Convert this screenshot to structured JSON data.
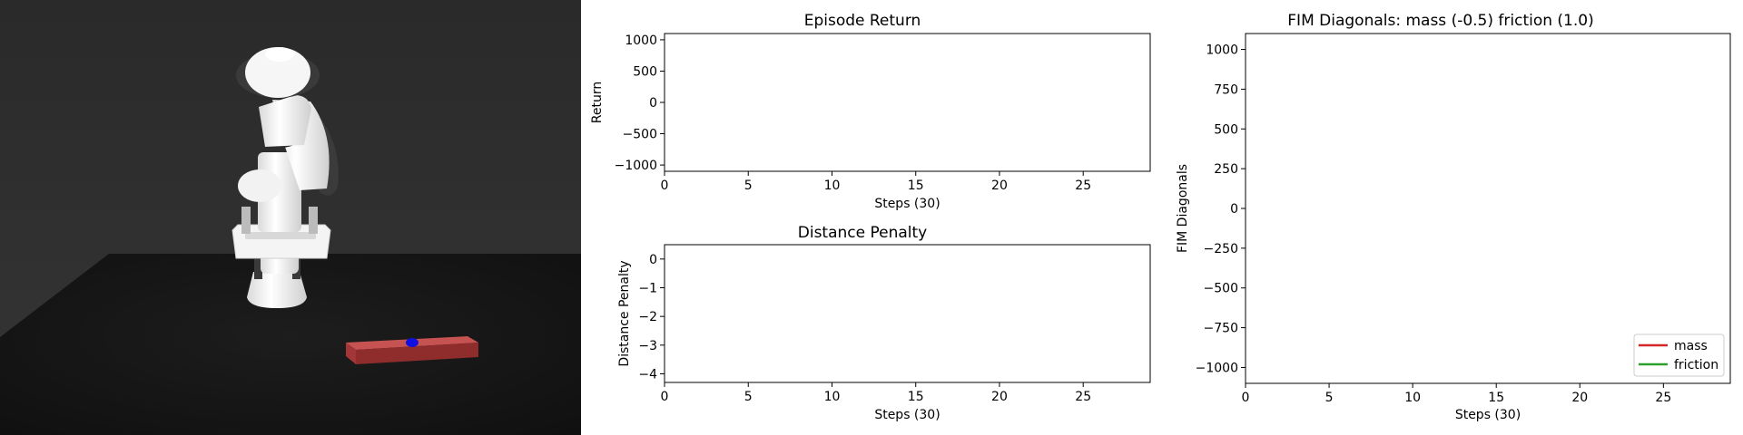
{
  "scene": {
    "colors": {
      "wall": "#2e2e2e",
      "floor": "#161616",
      "robot_body": "#f1f1f1",
      "robot_joint_dark": "#3a3a3a",
      "object": "#b33a3a",
      "target": "#1010e0"
    }
  },
  "chart_data": [
    {
      "id": "episode-return",
      "type": "line",
      "title": "Episode Return",
      "xlabel": "Steps (30)",
      "ylabel": "Return",
      "xlim": [
        0,
        29
      ],
      "ylim": [
        -1100,
        1100
      ],
      "xticks": [
        0,
        5,
        10,
        15,
        20,
        25
      ],
      "yticks": [
        -1000,
        -500,
        0,
        500,
        1000
      ],
      "ytick_labels": [
        "−1000",
        "−500",
        "0",
        "500",
        "1000"
      ],
      "grid": false,
      "series": []
    },
    {
      "id": "distance-penalty",
      "type": "line",
      "title": "Distance Penalty",
      "xlabel": "Steps (30)",
      "ylabel": "Distance Penalty",
      "xlim": [
        0,
        29
      ],
      "ylim": [
        -4.3,
        0.5
      ],
      "xticks": [
        0,
        5,
        10,
        15,
        20,
        25
      ],
      "yticks": [
        -4,
        -3,
        -2,
        -1,
        0
      ],
      "ytick_labels": [
        "−4",
        "−3",
        "−2",
        "−1",
        "0"
      ],
      "grid": false,
      "series": []
    },
    {
      "id": "fim-diagonals",
      "type": "line",
      "title": "FIM Diagonals: mass (-0.5) friction (1.0)",
      "xlabel": "Steps (30)",
      "ylabel": "FIM Diagonals",
      "xlim": [
        0,
        29
      ],
      "ylim": [
        -1100,
        1100
      ],
      "xticks": [
        0,
        5,
        10,
        15,
        20,
        25
      ],
      "yticks": [
        -1000,
        -750,
        -500,
        -250,
        0,
        250,
        500,
        750,
        1000
      ],
      "ytick_labels": [
        "−1000",
        "−750",
        "−500",
        "−250",
        "0",
        "250",
        "500",
        "750",
        "1000"
      ],
      "grid": false,
      "legend_position": "lower-right",
      "series": [
        {
          "name": "mass",
          "color": "#d62728",
          "x": [],
          "y": []
        },
        {
          "name": "friction",
          "color": "#2ca02c",
          "x": [],
          "y": []
        }
      ]
    }
  ]
}
